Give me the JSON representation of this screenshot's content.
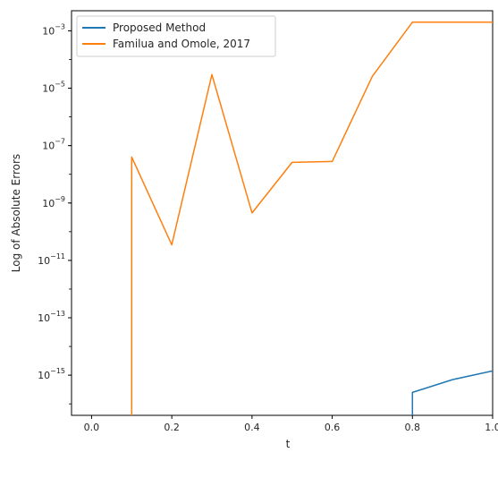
{
  "chart_data": {
    "type": "line",
    "xlabel": "t",
    "ylabel": "Log of Absolute Errors",
    "xscale": "linear",
    "yscale": "log",
    "xlim": [
      -0.05,
      1.0
    ],
    "ylim_exponent": [
      -16.4,
      -2.3
    ],
    "x_ticks": [
      {
        "value": 0.0,
        "label": "0.0"
      },
      {
        "value": 0.2,
        "label": "0.2"
      },
      {
        "value": 0.4,
        "label": "0.4"
      },
      {
        "value": 0.6,
        "label": "0.6"
      },
      {
        "value": 0.8,
        "label": "0.8"
      },
      {
        "value": 1.0,
        "label": "1.0"
      }
    ],
    "y_ticks": [
      {
        "exponent": -15,
        "label": "10",
        "sup": "−15"
      },
      {
        "exponent": -13,
        "label": "10",
        "sup": "−13"
      },
      {
        "exponent": -11,
        "label": "10",
        "sup": "−11"
      },
      {
        "exponent": -9,
        "label": "10",
        "sup": "−9"
      },
      {
        "exponent": -7,
        "label": "10",
        "sup": "−7"
      },
      {
        "exponent": -5,
        "label": "10",
        "sup": "−5"
      },
      {
        "exponent": -3,
        "label": "10",
        "sup": "−3"
      }
    ],
    "grid": false,
    "legend_position": "top-left",
    "series": [
      {
        "name": "Proposed Method",
        "color": "#1f77b4",
        "x": [
          0.8,
          0.8,
          0.9,
          1.0
        ],
        "y": [
          1e-17,
          2.5e-16,
          7e-16,
          1.4e-15
        ]
      },
      {
        "name": "Familua and Omole, 2017",
        "color": "#ff7f0e",
        "x": [
          0.1,
          0.1,
          0.2,
          0.3,
          0.4,
          0.5,
          0.6,
          0.7,
          0.8,
          0.9,
          1.0
        ],
        "y": [
          1e-17,
          4e-08,
          3.5e-11,
          3e-05,
          4.5e-10,
          2.6e-08,
          2.8e-08,
          2.6e-05,
          0.002,
          0.002,
          0.002
        ]
      }
    ]
  }
}
